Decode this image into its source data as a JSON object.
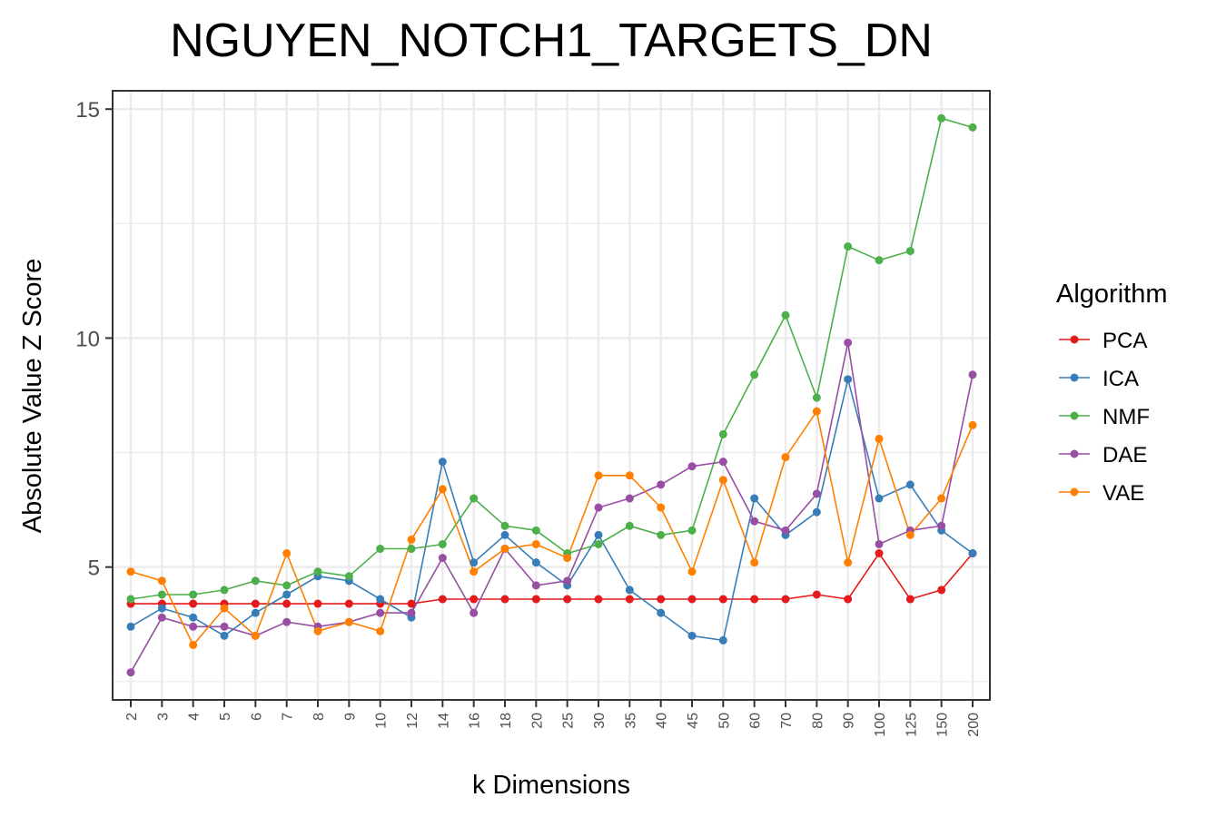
{
  "chart_data": {
    "type": "line",
    "title": "NGUYEN_NOTCH1_TARGETS_DN",
    "xlabel": "k Dimensions",
    "ylabel": "Absolute Value Z Score",
    "x": [
      "2",
      "3",
      "4",
      "5",
      "6",
      "7",
      "8",
      "9",
      "10",
      "12",
      "14",
      "16",
      "18",
      "20",
      "25",
      "30",
      "35",
      "40",
      "45",
      "50",
      "60",
      "70",
      "80",
      "90",
      "100",
      "125",
      "150",
      "200"
    ],
    "ylim": [
      2.1,
      15.4
    ],
    "yticks": [
      5,
      10,
      15
    ],
    "grid": true,
    "legend": {
      "title": "Algorithm",
      "position": "right"
    },
    "series": [
      {
        "name": "PCA",
        "color": "#e41a1c",
        "values": [
          4.2,
          4.2,
          4.2,
          4.2,
          4.2,
          4.2,
          4.2,
          4.2,
          4.2,
          4.2,
          4.3,
          4.3,
          4.3,
          4.3,
          4.3,
          4.3,
          4.3,
          4.3,
          4.3,
          4.3,
          4.3,
          4.3,
          4.4,
          4.3,
          5.3,
          4.3,
          4.5,
          5.3
        ]
      },
      {
        "name": "ICA",
        "color": "#377eb8",
        "values": [
          3.7,
          4.1,
          3.9,
          3.5,
          4.0,
          4.4,
          4.8,
          4.7,
          4.3,
          3.9,
          7.3,
          5.1,
          5.7,
          5.1,
          4.6,
          5.7,
          4.5,
          4.0,
          3.5,
          3.4,
          6.5,
          5.7,
          6.2,
          9.1,
          6.5,
          6.8,
          5.8,
          5.3
        ]
      },
      {
        "name": "NMF",
        "color": "#4daf4a",
        "values": [
          4.3,
          4.4,
          4.4,
          4.5,
          4.7,
          4.6,
          4.9,
          4.8,
          5.4,
          5.4,
          5.5,
          6.5,
          5.9,
          5.8,
          5.3,
          5.5,
          5.9,
          5.7,
          5.8,
          7.9,
          9.2,
          10.5,
          8.7,
          12.0,
          11.7,
          11.9,
          14.8,
          14.6
        ]
      },
      {
        "name": "DAE",
        "color": "#984ea3",
        "values": [
          2.7,
          3.9,
          3.7,
          3.7,
          3.5,
          3.8,
          3.7,
          3.8,
          4.0,
          4.0,
          5.2,
          4.0,
          5.4,
          4.6,
          4.7,
          6.3,
          6.5,
          6.8,
          7.2,
          7.3,
          6.0,
          5.8,
          6.6,
          9.9,
          5.5,
          5.8,
          5.9,
          9.2
        ]
      },
      {
        "name": "VAE",
        "color": "#ff7f00",
        "values": [
          4.9,
          4.7,
          3.3,
          4.1,
          3.5,
          5.3,
          3.6,
          3.8,
          3.6,
          5.6,
          6.7,
          4.9,
          5.4,
          5.5,
          5.2,
          7.0,
          7.0,
          6.3,
          4.9,
          6.9,
          5.1,
          7.4,
          8.4,
          5.1,
          7.8,
          5.7,
          6.5,
          8.1
        ]
      }
    ]
  }
}
